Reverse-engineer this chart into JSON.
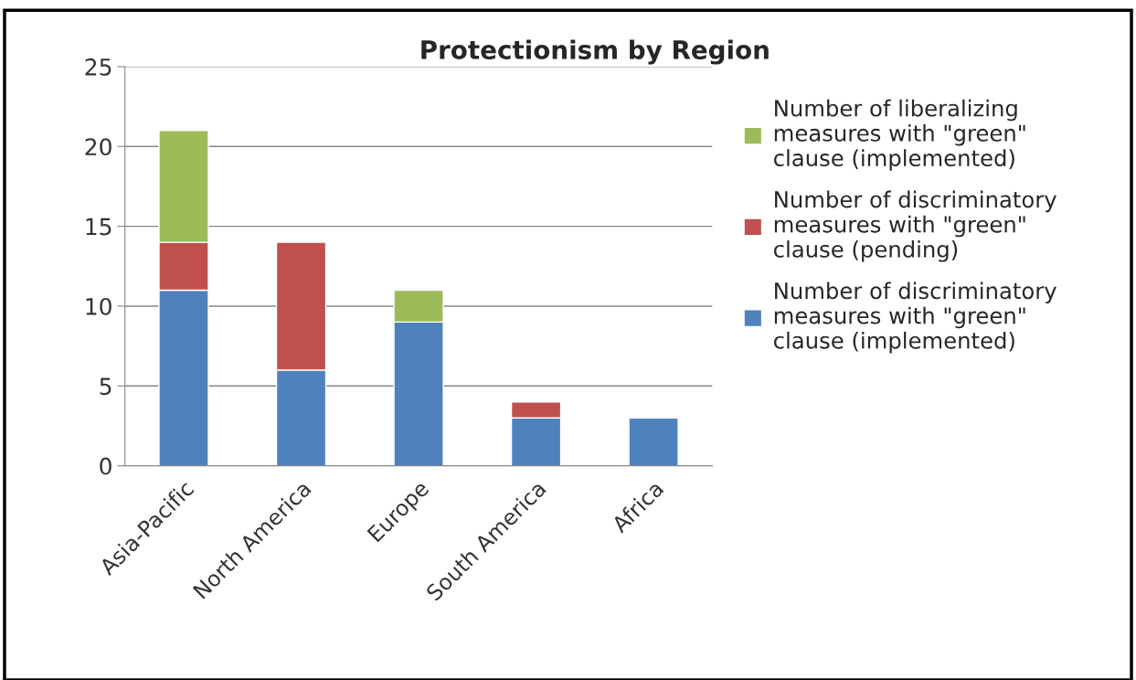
{
  "chart_data": {
    "type": "bar",
    "title": "Protectionism by Region",
    "categories": [
      "Asia-Pacific",
      "North America",
      "Europe",
      "South America",
      "Africa"
    ],
    "stacked": true,
    "series": [
      {
        "name": "Number of discriminatory\nmeasures with \"green\"\nclause (implemented)",
        "color": "#4f81bd",
        "values": [
          11,
          6,
          9,
          3,
          3
        ]
      },
      {
        "name": "Number of discriminatory\nmeasures with \"green\"\nclause (pending)",
        "color": "#c0504d",
        "values": [
          3,
          8,
          null,
          1,
          null
        ]
      },
      {
        "name": "Number of liberalizing\nmeasures with \"green\"\nclause (implemented)",
        "color": "#9bbb59",
        "values": [
          7,
          null,
          2,
          null,
          null
        ]
      }
    ],
    "ylim": [
      0,
      25
    ],
    "yticks": [
      0,
      5,
      10,
      15,
      20,
      25
    ],
    "grid": "y",
    "legend": "right"
  }
}
